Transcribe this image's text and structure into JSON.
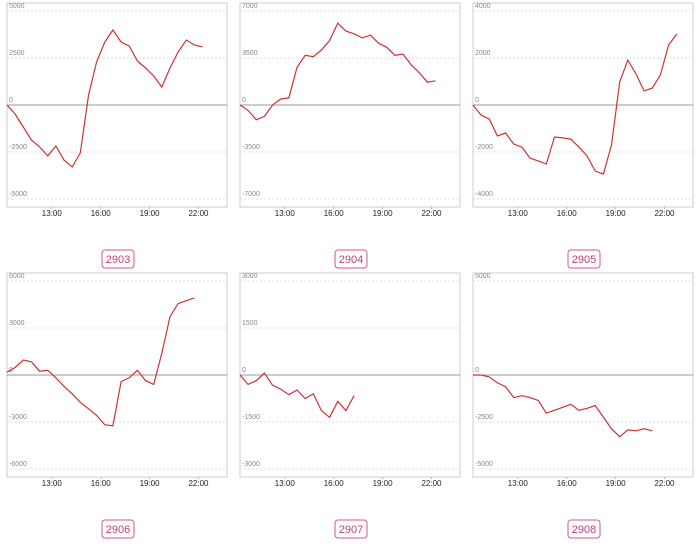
{
  "chart_data": [
    {
      "type": "line",
      "title": "2903",
      "color": "#cc3333",
      "grid": true,
      "xlim": [
        10.25,
        23.75
      ],
      "xticks": [
        {
          "value": 13,
          "label": "13:00"
        },
        {
          "value": 16,
          "label": "16:00"
        },
        {
          "value": 19,
          "label": "19:00"
        },
        {
          "value": 22,
          "label": "22:00"
        }
      ],
      "ylim": [
        -5000,
        5000
      ],
      "yticks": [
        -5000,
        -2500,
        0,
        2500,
        5000
      ],
      "x": [
        10.25,
        10.75,
        11.25,
        11.75,
        12.25,
        12.75,
        13.25,
        13.75,
        14.25,
        14.75,
        15.25,
        15.75,
        16.25,
        16.75,
        17.25,
        17.75,
        18.25,
        18.75,
        19.25,
        19.75,
        20.25,
        20.75,
        21.25,
        21.75,
        22.25
      ],
      "values": [
        0,
        -480,
        -1170,
        -1860,
        -2230,
        -2700,
        -2180,
        -2930,
        -3300,
        -2550,
        510,
        2290,
        3350,
        3990,
        3350,
        3140,
        2340,
        1970,
        1540,
        960,
        1970,
        2820,
        3460,
        3190,
        3090
      ]
    },
    {
      "type": "line",
      "title": "2904",
      "color": "#cc3333",
      "grid": true,
      "xlim": [
        10.25,
        23.75
      ],
      "xticks": [
        {
          "value": 13,
          "label": "13:00"
        },
        {
          "value": 16,
          "label": "16:00"
        },
        {
          "value": 19,
          "label": "19:00"
        },
        {
          "value": 22,
          "label": "22:00"
        }
      ],
      "ylim": [
        -7000,
        7000
      ],
      "yticks": [
        -7000,
        -3500,
        0,
        3500,
        7000
      ],
      "x": [
        10.25,
        10.75,
        11.25,
        11.75,
        12.25,
        12.75,
        13.25,
        13.75,
        14.25,
        14.75,
        15.25,
        15.75,
        16.25,
        16.75,
        17.25,
        17.75,
        18.25,
        18.75,
        19.25,
        19.75,
        20.25,
        20.75,
        21.25,
        21.75,
        22.25
      ],
      "values": [
        0,
        -400,
        -1100,
        -850,
        0,
        450,
        530,
        2800,
        3700,
        3600,
        4100,
        4800,
        6100,
        5500,
        5300,
        5000,
        5200,
        4600,
        4300,
        3700,
        3800,
        3000,
        2400,
        1700,
        1800
      ]
    },
    {
      "type": "line",
      "title": "2905",
      "color": "#cc3333",
      "grid": true,
      "xlim": [
        10.25,
        23.75
      ],
      "xticks": [
        {
          "value": 13,
          "label": "13:00"
        },
        {
          "value": 16,
          "label": "16:00"
        },
        {
          "value": 19,
          "label": "19:00"
        },
        {
          "value": 22,
          "label": "22:00"
        }
      ],
      "ylim": [
        -4000,
        4000
      ],
      "yticks": [
        -4000,
        -2000,
        0,
        2000,
        4000
      ],
      "x": [
        10.25,
        10.75,
        11.25,
        11.75,
        12.25,
        12.75,
        13.25,
        13.75,
        14.25,
        14.75,
        15.25,
        15.75,
        16.25,
        16.75,
        17.25,
        17.75,
        18.25,
        18.75,
        19.25,
        19.75,
        20.25,
        20.75,
        21.25,
        21.75,
        22.25,
        22.75
      ],
      "values": [
        0,
        -430,
        -600,
        -1320,
        -1190,
        -1660,
        -1790,
        -2260,
        -2380,
        -2510,
        -1360,
        -1400,
        -1450,
        -1790,
        -2170,
        -2810,
        -2940,
        -1700,
        980,
        1910,
        1320,
        600,
        720,
        1280,
        2550,
        3020
      ]
    },
    {
      "type": "line",
      "title": "2906",
      "color": "#cc3333",
      "grid": true,
      "xlim": [
        10.25,
        23.75
      ],
      "xticks": [
        {
          "value": 13,
          "label": "13:00"
        },
        {
          "value": 16,
          "label": "16:00"
        },
        {
          "value": 19,
          "label": "19:00"
        },
        {
          "value": 22,
          "label": "22:00"
        }
      ],
      "ylim": [
        -6000,
        6000
      ],
      "yticks": [
        -6000,
        -3000,
        0,
        3000,
        6000
      ],
      "x": [
        10.25,
        10.75,
        11.25,
        11.75,
        12.25,
        12.75,
        13.25,
        13.75,
        14.25,
        14.75,
        15.25,
        15.75,
        16.25,
        16.75,
        17.25,
        17.75,
        18.25,
        18.75,
        19.25,
        19.75,
        20.25,
        20.75,
        21.25,
        21.75
      ],
      "values": [
        180,
        480,
        960,
        840,
        240,
        300,
        -180,
        -720,
        -1200,
        -1740,
        -2160,
        -2580,
        -3180,
        -3240,
        -420,
        -180,
        300,
        -360,
        -600,
        1380,
        3720,
        4560,
        4740,
        4920
      ]
    },
    {
      "type": "line",
      "title": "2907",
      "color": "#cc3333",
      "grid": true,
      "xlim": [
        10.25,
        23.75
      ],
      "xticks": [
        {
          "value": 13,
          "label": "13:00"
        },
        {
          "value": 16,
          "label": "16:00"
        },
        {
          "value": 19,
          "label": "19:00"
        },
        {
          "value": 22,
          "label": "22:00"
        }
      ],
      "ylim": [
        -3000,
        3000
      ],
      "yticks": [
        -3000,
        -1500,
        0,
        1500,
        3000
      ],
      "x": [
        10.25,
        10.75,
        11.25,
        11.75,
        12.25,
        12.75,
        13.25,
        13.75,
        14.25,
        14.75,
        15.25,
        15.75,
        16.25,
        16.75,
        17.25
      ],
      "values": [
        0,
        -300,
        -180,
        60,
        -330,
        -450,
        -630,
        -480,
        -750,
        -600,
        -1140,
        -1350,
        -840,
        -1140,
        -660
      ]
    },
    {
      "type": "line",
      "title": "2908",
      "color": "#cc3333",
      "grid": true,
      "xlim": [
        10.25,
        23.75
      ],
      "xticks": [
        {
          "value": 13,
          "label": "13:00"
        },
        {
          "value": 16,
          "label": "16:00"
        },
        {
          "value": 19,
          "label": "19:00"
        },
        {
          "value": 22,
          "label": "22:00"
        }
      ],
      "ylim": [
        -5000,
        5000
      ],
      "yticks": [
        -5000,
        -2500,
        0,
        5000
      ],
      "x": [
        10.25,
        10.75,
        11.25,
        11.75,
        12.25,
        12.75,
        13.25,
        13.75,
        14.25,
        14.75,
        15.25,
        15.75,
        16.25,
        16.75,
        17.25,
        17.75,
        18.25,
        18.75,
        19.25,
        19.75,
        20.25,
        20.75,
        21.25
      ],
      "values": [
        0,
        0,
        -100,
        -420,
        -620,
        -1200,
        -1100,
        -1200,
        -1350,
        -2030,
        -1880,
        -1720,
        -1560,
        -1880,
        -1770,
        -1620,
        -2240,
        -2860,
        -3280,
        -2920,
        -2970,
        -2860,
        -2970
      ]
    }
  ]
}
